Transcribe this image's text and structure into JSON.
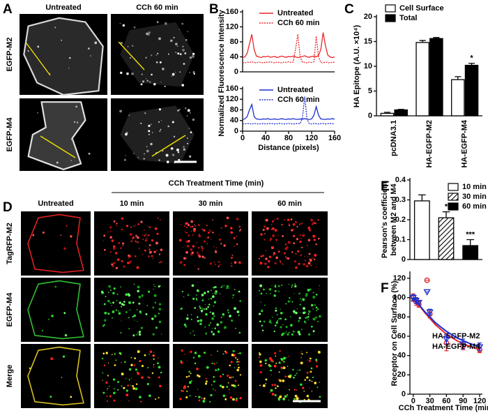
{
  "panels": {
    "A": {
      "label": "A",
      "columns": [
        "Untreated",
        "CCh 60 min"
      ],
      "rows": [
        "EGFP-M2",
        "EGFP-M4"
      ]
    },
    "D": {
      "label": "D",
      "header": "CCh Treatment Time (min)",
      "columns": [
        "Untreated",
        "10 min",
        "30 min",
        "60 min"
      ],
      "rows": [
        "TagRFP-M2",
        "EGFP-M4",
        "Merge"
      ]
    }
  },
  "chart_data": [
    {
      "label": "B",
      "type": "line",
      "ylabel": "Normalized Fluorescence Intensity",
      "x": [
        0,
        4,
        8,
        12,
        16,
        20,
        24,
        28,
        32,
        36,
        40,
        44,
        48,
        52,
        56,
        60,
        64,
        68,
        72,
        76,
        80,
        84,
        88,
        92,
        96,
        100,
        104,
        108,
        112,
        116,
        120,
        124,
        128,
        132,
        136,
        140,
        144,
        148,
        152,
        156,
        160
      ],
      "series": [
        {
          "name": "Untreated",
          "color": "#e8262a",
          "style": "solid",
          "values": [
            38,
            40,
            50,
            75,
            100,
            60,
            42,
            40,
            38,
            41,
            40,
            42,
            39,
            40,
            41,
            38,
            40,
            42,
            40,
            39,
            41,
            40,
            42,
            40,
            38,
            40,
            41,
            43,
            40,
            39,
            41,
            42,
            40,
            44,
            60,
            105,
            70,
            45,
            40,
            38,
            40
          ]
        },
        {
          "name": "CCh 60 min",
          "color": "#e8262a",
          "style": "dotted",
          "values": [
            25,
            24,
            26,
            25,
            27,
            25,
            24,
            26,
            25,
            24,
            26,
            25,
            27,
            25,
            24,
            26,
            25,
            24,
            26,
            25,
            27,
            25,
            26,
            60,
            100,
            40,
            26,
            25,
            24,
            26,
            25,
            27,
            95,
            40,
            25,
            24,
            26,
            25,
            24,
            26,
            25
          ]
        }
      ],
      "xlim": [
        0,
        160
      ],
      "ylim": [
        0,
        160
      ],
      "yticks": [
        0,
        40,
        80,
        120,
        160
      ]
    },
    {
      "type": "line",
      "xlabel": "Distance (pixels)",
      "x": [
        0,
        4,
        8,
        12,
        16,
        20,
        24,
        28,
        32,
        36,
        40,
        44,
        48,
        52,
        56,
        60,
        64,
        68,
        72,
        76,
        80,
        84,
        88,
        92,
        96,
        100,
        104,
        108,
        112,
        116,
        120,
        124,
        128,
        132,
        136,
        140,
        144,
        148,
        152,
        156,
        160
      ],
      "series": [
        {
          "name": "Untreated",
          "color": "#1a2fd0",
          "style": "solid",
          "values": [
            44,
            46,
            55,
            80,
            100,
            55,
            46,
            45,
            44,
            46,
            45,
            47,
            44,
            45,
            46,
            44,
            45,
            47,
            45,
            44,
            46,
            45,
            47,
            45,
            44,
            46,
            45,
            47,
            45,
            44,
            46,
            60,
            92,
            60,
            46,
            45,
            44,
            46,
            45,
            47,
            45
          ]
        },
        {
          "name": "CCh 60 min",
          "color": "#1a2fd0",
          "style": "dotted",
          "values": [
            28,
            27,
            29,
            28,
            27,
            29,
            28,
            27,
            28,
            29,
            27,
            28,
            29,
            28,
            27,
            28,
            29,
            28,
            27,
            28,
            29,
            28,
            27,
            28,
            29,
            28,
            50,
            130,
            45,
            28,
            27,
            29,
            28,
            27,
            28,
            29,
            27,
            28,
            29,
            28,
            27
          ]
        }
      ],
      "xlim": [
        0,
        160
      ],
      "ylim": [
        0,
        160
      ],
      "xticks": [
        0,
        40,
        80,
        120,
        160
      ],
      "yticks": [
        0,
        40,
        80,
        120,
        160
      ]
    },
    {
      "label": "C",
      "type": "bar",
      "ylabel": "HA Epitope (A.U. ×10⁴)",
      "categories": [
        "pcDNA3.1",
        "HA-EGFP-M2",
        "HA-EGFP-M4"
      ],
      "series": [
        {
          "name": "Cell Surface",
          "color": "#ffffff",
          "values": [
            0.5,
            14.8,
            7.3
          ],
          "errors": [
            0.2,
            0.4,
            0.6
          ]
        },
        {
          "name": "Total",
          "color": "#000000",
          "values": [
            1.2,
            15.6,
            10.2
          ],
          "errors": [
            0.1,
            0.2,
            0.4
          ]
        }
      ],
      "annotations": [
        {
          "text": "*",
          "category": "HA-EGFP-M4",
          "series": "Total"
        }
      ],
      "ylim": [
        0,
        20
      ],
      "yticks": [
        0,
        5,
        10,
        15,
        20
      ]
    },
    {
      "label": "E",
      "type": "bar",
      "ylabel": [
        "Pearson's coefficient",
        "between M2 and M4"
      ],
      "series": [
        {
          "name": "10 min",
          "color": "#ffffff",
          "values": [
            0.295
          ],
          "errors": [
            0.03
          ]
        },
        {
          "name": "30 min",
          "color": "#ffffff",
          "pattern": "hatch",
          "values": [
            0.21
          ],
          "errors": [
            0.03
          ]
        },
        {
          "name": "60 min",
          "color": "#000000",
          "values": [
            0.07
          ],
          "errors": [
            0.03
          ]
        }
      ],
      "annotations": [
        {
          "text": "*",
          "series": "30 min"
        },
        {
          "text": "***",
          "series": "60 min"
        }
      ],
      "ylim": [
        0,
        0.4
      ],
      "yticks": [
        0,
        0.1,
        0.2,
        0.3,
        0.4
      ]
    },
    {
      "label": "F",
      "type": "scatter",
      "xlabel": "CCh Treatment Time (min)",
      "ylabel": "Receptor on Cell Surface (%)",
      "x": [
        0,
        5,
        10,
        25,
        30,
        60,
        90,
        120
      ],
      "series": [
        {
          "name": "HA-EGFP-M2",
          "color": "#e8262a",
          "marker": "circle",
          "values": [
            100,
            96,
            93,
            118,
            83,
            53,
            50,
            46
          ],
          "errors": [
            4,
            4,
            3,
            0,
            4,
            8,
            4,
            3
          ],
          "fit": {
            "x": [
              0,
              20,
              40,
              60,
              80,
              100,
              120
            ],
            "values": [
              100,
              85,
              72,
              62,
              55,
              50,
              46
            ]
          }
        },
        {
          "name": "HA-EGFP-M4",
          "color": "#1a2fd0",
          "marker": "triangle",
          "values": [
            100,
            97,
            95,
            106,
            85,
            57,
            52,
            49
          ],
          "errors": [
            3,
            3,
            2,
            0,
            3,
            5,
            5,
            4
          ],
          "fit": {
            "x": [
              0,
              20,
              40,
              60,
              80,
              100,
              120
            ],
            "values": [
              100,
              86,
              74,
              65,
              58,
              53,
              49
            ]
          }
        }
      ],
      "xlim": [
        -6,
        125
      ],
      "ylim": [
        0,
        125
      ],
      "xticks": [
        0,
        30,
        60,
        90,
        120
      ],
      "yticks": [
        0,
        20,
        40,
        60,
        80,
        100,
        120
      ]
    }
  ]
}
